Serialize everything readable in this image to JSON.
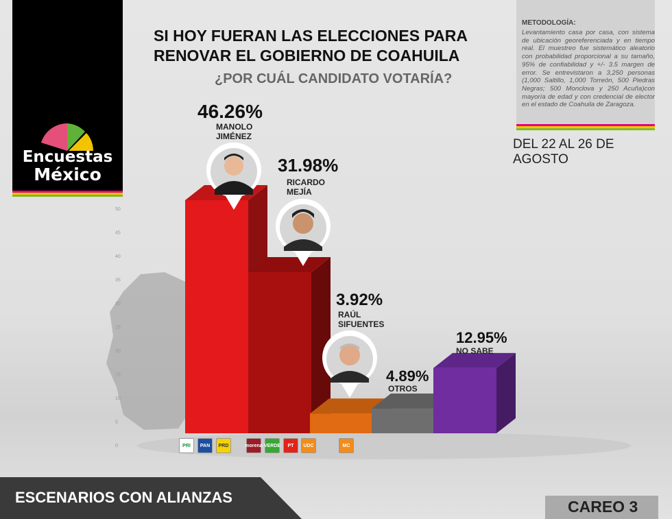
{
  "brand": {
    "line1": "Encuestas",
    "line2": "México"
  },
  "title": "SI HOY FUERAN LAS ELECCIONES PARA RENOVAR EL GOBIERNO DE COAHUILA",
  "subtitle": "¿POR CUÁL CANDIDATO VOTARÍA?",
  "methodology": {
    "title": "METODOLOGÍA:",
    "text": "Levantamiento casa por casa, con sistema de ubicación georeferenciada y en tiempo real. El muestreo fue sistemático aleatorio con probabilidad proporcional a su tamaño, 95% de confiabilidad y +/- 3.5 margen de error. Se entrevistaron a 3,250 personas (1,000 Saltillo, 1,000 Torreón, 500 Piedras Negras; 500 Monclova y 250 Acuña)con mayoría de edad y con credencial de elector en el estado de Coahuila de Zaragoza."
  },
  "date_range": "DEL 22 AL 26 DE AGOSTO",
  "footer": {
    "scenario": "ESCENARIOS CON ALIANZAS",
    "careo": "CAREO 3"
  },
  "colors": {
    "manolo": "#e3191b",
    "ricardo": "#a8100f",
    "raul": "#e06b12",
    "otros": "#6e6e6e",
    "no_sabe": "#6f2da0",
    "stripe1": "#e4007c",
    "stripe2": "#f2c400",
    "stripe3": "#7dbb2d"
  },
  "parties": [
    {
      "name": "PRI",
      "color": "#ffffff"
    },
    {
      "name": "PAN",
      "color": "#1d4fa0"
    },
    {
      "name": "PRD",
      "color": "#f6d200"
    },
    {
      "name": "morena",
      "color": "#9b1c27"
    },
    {
      "name": "VERDE",
      "color": "#3aa635"
    },
    {
      "name": "PT",
      "color": "#e2231a"
    },
    {
      "name": "UDC",
      "color": "#f28c1b"
    },
    {
      "name": "MC",
      "color": "#f28c1b"
    }
  ],
  "chart_data": {
    "type": "bar",
    "title": "SI HOY FUERAN LAS ELECCIONES PARA RENOVAR EL GOBIERNO DE COAHUILA",
    "subtitle": "¿POR CUÁL CANDIDATO VOTARÍA?",
    "categories": [
      "MANOLO JIMÉNEZ",
      "RICARDO MEJÍA",
      "RAÚL SIFUENTES",
      "OTROS",
      "NO SABE"
    ],
    "values": [
      46.26,
      31.98,
      3.92,
      4.89,
      12.95
    ],
    "labels": [
      "46.26%",
      "31.98%",
      "3.92%",
      "4.89%",
      "12.95%"
    ],
    "y_ticks": [
      "0",
      "5",
      "10",
      "15",
      "20",
      "25",
      "30",
      "35",
      "40",
      "45",
      "50"
    ],
    "ylim": [
      0,
      50
    ],
    "grid": false
  }
}
